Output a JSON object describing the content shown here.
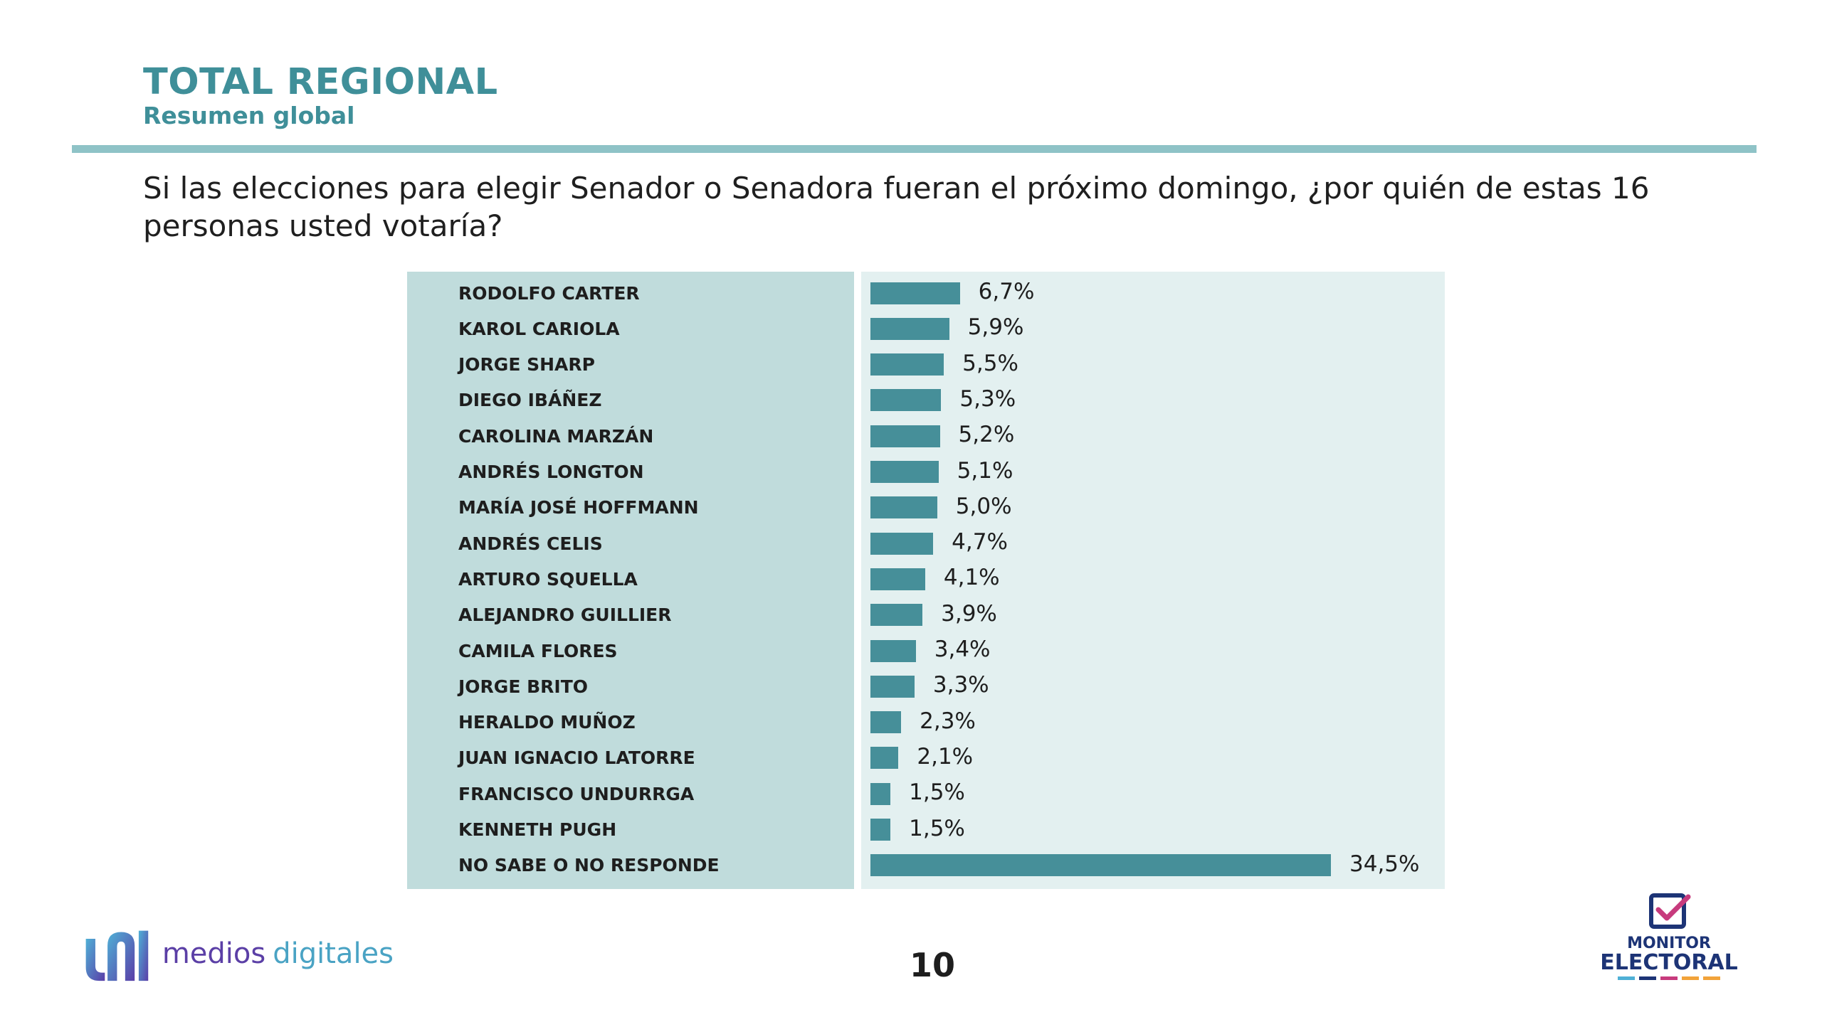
{
  "header": {
    "title": "TOTAL REGIONAL",
    "subtitle": "Resumen global"
  },
  "question": "Si las elecciones para elegir Senador o Senadora fueran el próximo domingo, ¿por quién de estas 16 personas usted votaría?",
  "chart_data": {
    "type": "bar",
    "orientation": "horizontal",
    "categories": [
      "RODOLFO CARTER",
      "KAROL CARIOLA",
      "JORGE SHARP",
      "DIEGO IBÁÑEZ",
      "CAROLINA MARZÁN",
      "ANDRÉS LONGTON",
      "MARÍA JOSÉ HOFFMANN",
      "ANDRÉS CELIS",
      "ARTURO SQUELLA",
      "ALEJANDRO GUILLIER",
      "CAMILA FLORES",
      "JORGE BRITO",
      "HERALDO MUÑOZ",
      "JUAN IGNACIO LATORRE",
      "FRANCISCO UNDURRGA",
      "KENNETH PUGH",
      "NO SABE O NO RESPONDE"
    ],
    "values": [
      6.7,
      5.9,
      5.5,
      5.3,
      5.2,
      5.1,
      5.0,
      4.7,
      4.1,
      3.9,
      3.4,
      3.3,
      2.3,
      2.1,
      1.5,
      1.5,
      34.5
    ],
    "value_labels": [
      "6,7%",
      "5,9%",
      "5,5%",
      "5,3%",
      "5,2%",
      "5,1%",
      "5,0%",
      "4,7%",
      "4,1%",
      "3,9%",
      "3,4%",
      "3,3%",
      "2,3%",
      "2,1%",
      "1,5%",
      "1,5%",
      "34,5%"
    ],
    "unit": "%",
    "xlim": [
      0,
      34.5
    ],
    "grid": false,
    "bar_color": "#468f99"
  },
  "footer": {
    "page_number": "10",
    "medios_logo": {
      "word1": "medios",
      "word2": "digitales"
    },
    "monitor_logo": {
      "line1": "MONITOR",
      "line2": "ELECTORAL"
    }
  },
  "colors": {
    "accent": "#3f8f99",
    "divider": "#8fc3c7",
    "panel_left": "#c0dcdc",
    "panel_right": "#e3f0f0"
  }
}
